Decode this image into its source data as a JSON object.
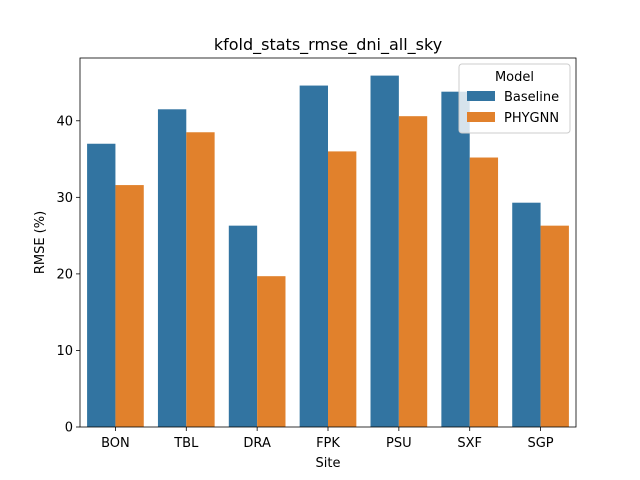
{
  "chart_data": {
    "type": "bar",
    "title": "kfold_stats_rmse_dni_all_sky",
    "xlabel": "Site",
    "ylabel": "RMSE (%)",
    "categories": [
      "BON",
      "TBL",
      "DRA",
      "FPK",
      "PSU",
      "SXF",
      "SGP"
    ],
    "series": [
      {
        "name": "Baseline",
        "color": "#3274a1",
        "values": [
          37.0,
          41.5,
          26.3,
          44.6,
          45.9,
          43.8,
          29.3
        ]
      },
      {
        "name": "PHYGNN",
        "color": "#e1812c",
        "values": [
          31.6,
          38.5,
          19.7,
          36.0,
          40.6,
          35.2,
          26.3
        ]
      }
    ],
    "ylim": [
      0,
      48.2
    ],
    "yticks": [
      0,
      10,
      20,
      30,
      40
    ],
    "grid": false,
    "legend": {
      "title": "Model",
      "placement": "top-right"
    }
  }
}
